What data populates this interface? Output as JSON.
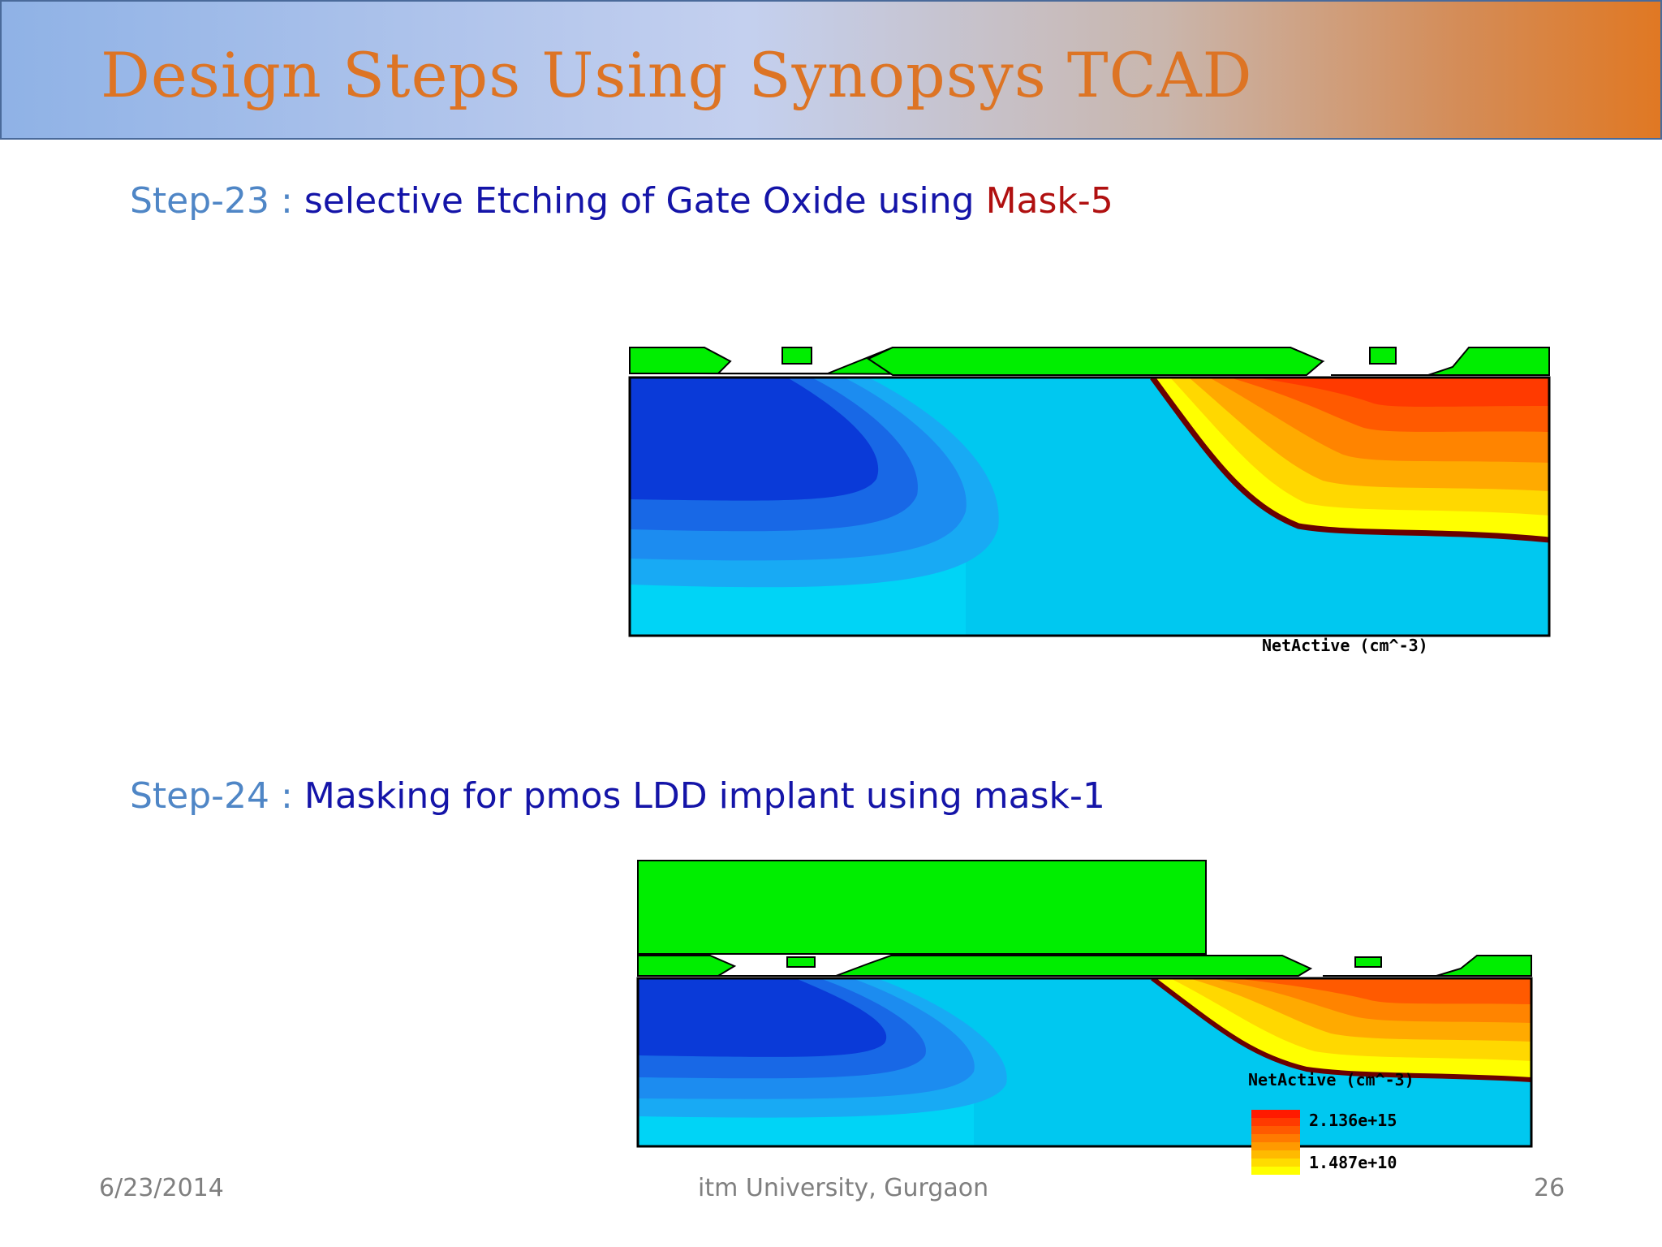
{
  "header": {
    "title": "Design Steps Using Synopsys TCAD"
  },
  "steps": [
    {
      "number": "Step-23 :",
      "description": "selective Etching of Gate Oxide using ",
      "mask": "Mask-5"
    },
    {
      "number": "Step-24  :",
      "description": "Masking  for pmos LDD implant using mask-1"
    }
  ],
  "figures": [
    {
      "caption": "NetActive (cm^-3)"
    },
    {
      "caption": "NetActive (cm^-3)",
      "legend": {
        "max": "2.136e+15",
        "min": "1.487e+10"
      }
    }
  ],
  "footer": {
    "date": "6/23/2014",
    "center": "itm University, Gurgaon",
    "page": "26"
  },
  "colors": {
    "title": "#dd7424",
    "step_number": "#4f86c6",
    "step_text": "#1414a8",
    "mask_text": "#b01010",
    "oxide_green": "#00ee00",
    "n_blue_dark": "#0a3ad8",
    "substrate_cyan": "#00c8f0",
    "p_red": "#ff3a00",
    "p_yellow": "#ffff00"
  }
}
